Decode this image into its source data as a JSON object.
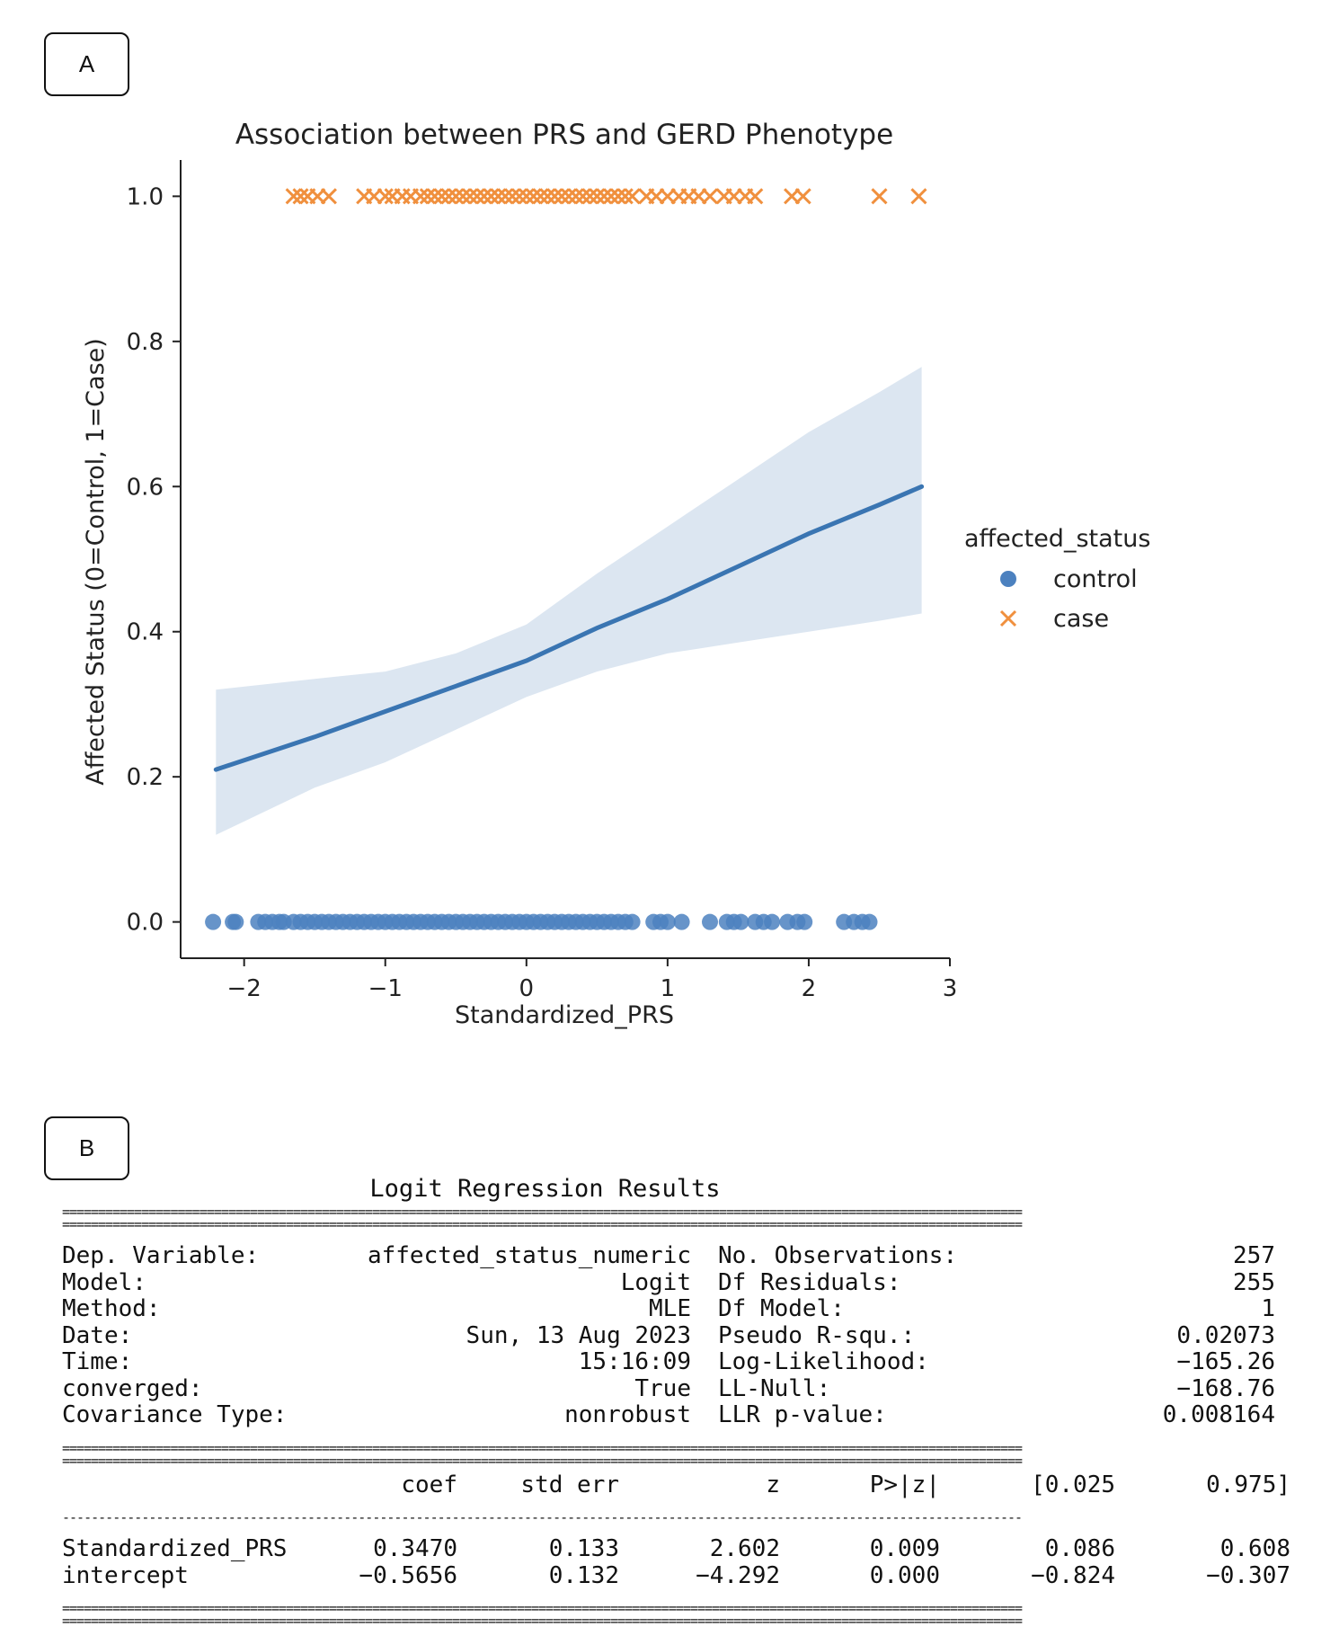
{
  "panels": {
    "a": "A",
    "b": "B"
  },
  "chart_data": {
    "type": "scatter",
    "title": "Association between PRS and GERD Phenotype",
    "xlabel": "Standardized_PRS",
    "ylabel": "Affected Status (0=Control, 1=Case)",
    "xlim": [
      -2.45,
      3.0
    ],
    "ylim": [
      -0.05,
      1.05
    ],
    "xticks": [
      -2,
      -1,
      0,
      1,
      2,
      3
    ],
    "xtick_labels": [
      "−2",
      "−1",
      "0",
      "1",
      "2",
      "3"
    ],
    "yticks": [
      0.0,
      0.2,
      0.4,
      0.6,
      0.8,
      1.0
    ],
    "ytick_labels": [
      "0.0",
      "0.2",
      "0.4",
      "0.6",
      "0.8",
      "1.0"
    ],
    "grid": false,
    "legend": {
      "title": "affected_status",
      "placement": "right",
      "entries": [
        {
          "label": "control",
          "marker": "circle",
          "color": "#4c81bf"
        },
        {
          "label": "case",
          "marker": "x",
          "color": "#f0903e"
        }
      ]
    },
    "series": [
      {
        "name": "control",
        "marker": "circle",
        "color": "#4c81bf",
        "y": 0,
        "x": [
          -2.22,
          -2.08,
          -2.06,
          -1.9,
          -1.85,
          -1.8,
          -1.75,
          -1.72,
          -1.65,
          -1.6,
          -1.55,
          -1.5,
          -1.45,
          -1.4,
          -1.35,
          -1.3,
          -1.25,
          -1.2,
          -1.15,
          -1.1,
          -1.05,
          -1.0,
          -0.95,
          -0.9,
          -0.85,
          -0.8,
          -0.75,
          -0.7,
          -0.65,
          -0.6,
          -0.55,
          -0.5,
          -0.45,
          -0.4,
          -0.35,
          -0.3,
          -0.25,
          -0.2,
          -0.15,
          -0.1,
          -0.05,
          0.0,
          0.05,
          0.1,
          0.15,
          0.2,
          0.25,
          0.3,
          0.35,
          0.4,
          0.45,
          0.5,
          0.55,
          0.6,
          0.65,
          0.7,
          0.75,
          0.9,
          0.95,
          1.0,
          1.1,
          1.3,
          1.42,
          1.47,
          1.52,
          1.62,
          1.68,
          1.74,
          1.85,
          1.92,
          1.97,
          2.25,
          2.32,
          2.38,
          2.43
        ]
      },
      {
        "name": "case",
        "marker": "x",
        "color": "#f0903e",
        "y": 1,
        "x": [
          -1.65,
          -1.6,
          -1.55,
          -1.48,
          -1.4,
          -1.15,
          -1.08,
          -1.0,
          -0.95,
          -0.88,
          -0.82,
          -0.75,
          -0.7,
          -0.65,
          -0.6,
          -0.55,
          -0.5,
          -0.45,
          -0.4,
          -0.35,
          -0.3,
          -0.25,
          -0.2,
          -0.15,
          -0.1,
          -0.05,
          0.0,
          0.05,
          0.1,
          0.15,
          0.2,
          0.25,
          0.3,
          0.35,
          0.4,
          0.45,
          0.5,
          0.55,
          0.6,
          0.65,
          0.7,
          0.75,
          0.85,
          0.92,
          1.0,
          1.08,
          1.15,
          1.22,
          1.3,
          1.4,
          1.47,
          1.55,
          1.62,
          1.88,
          1.96,
          2.5,
          2.78
        ]
      }
    ],
    "fit": {
      "name": "logistic fit",
      "color": "#3a75b2",
      "band_color": "#dce6f1",
      "x": [
        -2.2,
        -1.5,
        -1.0,
        -0.5,
        0.0,
        0.5,
        1.0,
        1.5,
        2.0,
        2.5,
        2.8
      ],
      "y": [
        0.21,
        0.255,
        0.29,
        0.325,
        0.36,
        0.405,
        0.445,
        0.49,
        0.535,
        0.575,
        0.6
      ],
      "lower": [
        0.12,
        0.185,
        0.22,
        0.265,
        0.31,
        0.345,
        0.37,
        0.385,
        0.4,
        0.415,
        0.425
      ],
      "upper": [
        0.32,
        0.335,
        0.345,
        0.37,
        0.41,
        0.48,
        0.545,
        0.61,
        0.675,
        0.73,
        0.765
      ]
    }
  },
  "regression_table": {
    "title": "Logit Regression Results",
    "rule_double": "=====================================================================================================================================",
    "rule_single": "-------------------------------------------------------------------------------------------------------------------------------------",
    "summary": [
      {
        "label1": "Dep. Variable:",
        "value1": "affected_status_numeric",
        "label2": "No. Observations:",
        "value2": "257"
      },
      {
        "label1": "Model:",
        "value1": "Logit",
        "label2": "Df Residuals:",
        "value2": "255"
      },
      {
        "label1": "Method:",
        "value1": "MLE",
        "label2": "Df Model:",
        "value2": "1"
      },
      {
        "label1": "Date:",
        "value1": "Sun, 13 Aug 2023",
        "label2": "Pseudo R-squ.:",
        "value2": "0.02073"
      },
      {
        "label1": "Time:",
        "value1": "15:16:09",
        "label2": "Log-Likelihood:",
        "value2": "−165.26"
      },
      {
        "label1": "converged:",
        "value1": "True",
        "label2": "LL-Null:",
        "value2": "−168.76"
      },
      {
        "label1": "Covariance Type:",
        "value1": "nonrobust",
        "label2": "LLR p-value:",
        "value2": "0.008164"
      }
    ],
    "columns": [
      "coef",
      "std err",
      "z",
      "P>|z|",
      "[0.025",
      "0.975]"
    ],
    "rows": [
      {
        "name": "Standardized_PRS",
        "values": [
          "0.3470",
          "0.133",
          "2.602",
          "0.009",
          "0.086",
          "0.608"
        ]
      },
      {
        "name": "intercept",
        "values": [
          "−0.5656",
          "0.132",
          "−4.292",
          "0.000",
          "−0.824",
          "−0.307"
        ]
      }
    ]
  }
}
